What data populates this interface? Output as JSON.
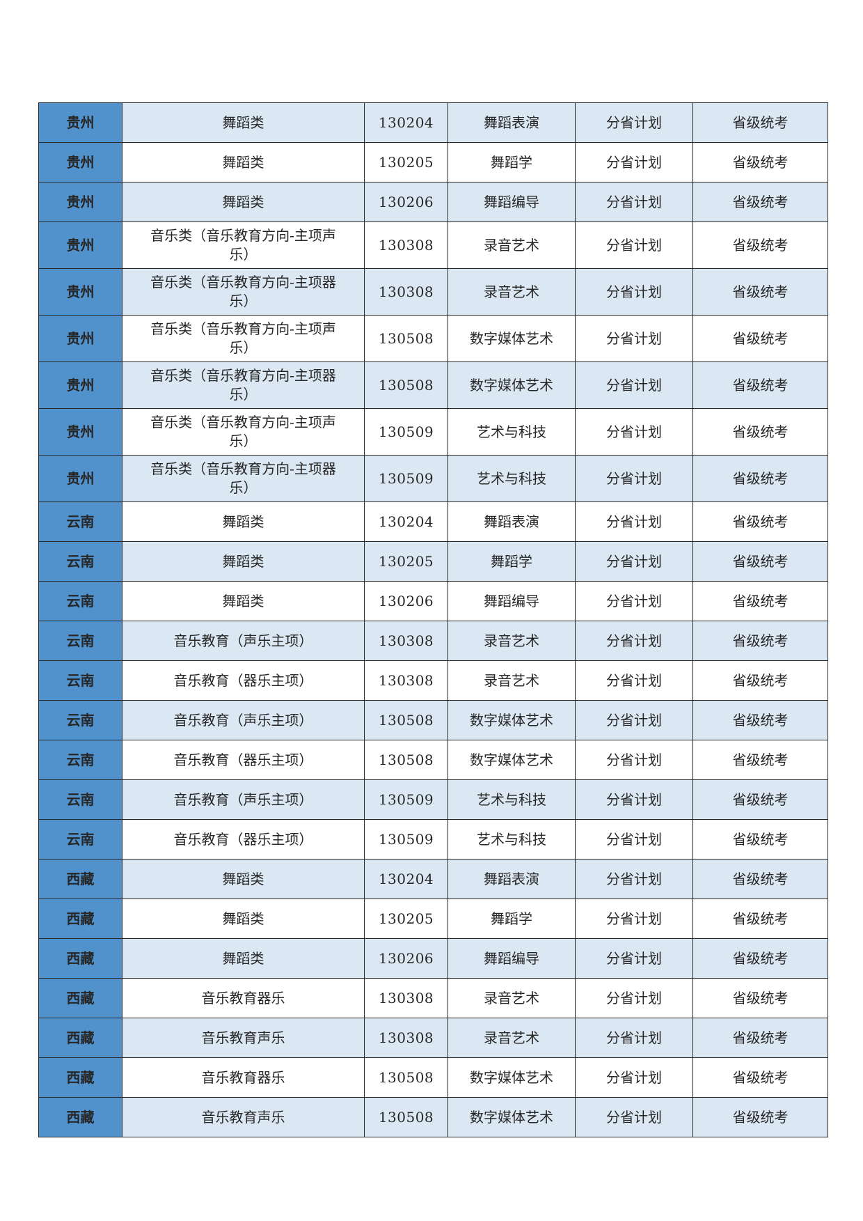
{
  "table": {
    "description": "enrollment plan table",
    "colors": {
      "province_cell_bg": "#5192cd",
      "row_light_bg": "#dbe8f4",
      "row_white_bg": "#ffffff",
      "border": "#262626",
      "text": "#262626"
    },
    "column_keys": [
      "province",
      "category",
      "code",
      "major",
      "plan",
      "exam"
    ],
    "rows": [
      {
        "province": "贵州",
        "category": "舞蹈类",
        "code": "130204",
        "major": "舞蹈表演",
        "plan": "分省计划",
        "exam": "省级统考",
        "shade": "light"
      },
      {
        "province": "贵州",
        "category": "舞蹈类",
        "code": "130205",
        "major": "舞蹈学",
        "plan": "分省计划",
        "exam": "省级统考",
        "shade": "white"
      },
      {
        "province": "贵州",
        "category": "舞蹈类",
        "code": "130206",
        "major": "舞蹈编导",
        "plan": "分省计划",
        "exam": "省级统考",
        "shade": "light"
      },
      {
        "province": "贵州",
        "category": "音乐类（音乐教育方向-主项声乐）",
        "code": "130308",
        "major": "录音艺术",
        "plan": "分省计划",
        "exam": "省级统考",
        "shade": "white"
      },
      {
        "province": "贵州",
        "category": "音乐类（音乐教育方向-主项器乐）",
        "code": "130308",
        "major": "录音艺术",
        "plan": "分省计划",
        "exam": "省级统考",
        "shade": "light"
      },
      {
        "province": "贵州",
        "category": "音乐类（音乐教育方向-主项声乐）",
        "code": "130508",
        "major": "数字媒体艺术",
        "plan": "分省计划",
        "exam": "省级统考",
        "shade": "white"
      },
      {
        "province": "贵州",
        "category": "音乐类（音乐教育方向-主项器乐）",
        "code": "130508",
        "major": "数字媒体艺术",
        "plan": "分省计划",
        "exam": "省级统考",
        "shade": "light"
      },
      {
        "province": "贵州",
        "category": "音乐类（音乐教育方向-主项声乐）",
        "code": "130509",
        "major": "艺术与科技",
        "plan": "分省计划",
        "exam": "省级统考",
        "shade": "white"
      },
      {
        "province": "贵州",
        "category": "音乐类（音乐教育方向-主项器乐）",
        "code": "130509",
        "major": "艺术与科技",
        "plan": "分省计划",
        "exam": "省级统考",
        "shade": "light"
      },
      {
        "province": "云南",
        "category": "舞蹈类",
        "code": "130204",
        "major": "舞蹈表演",
        "plan": "分省计划",
        "exam": "省级统考",
        "shade": "white"
      },
      {
        "province": "云南",
        "category": "舞蹈类",
        "code": "130205",
        "major": "舞蹈学",
        "plan": "分省计划",
        "exam": "省级统考",
        "shade": "light"
      },
      {
        "province": "云南",
        "category": "舞蹈类",
        "code": "130206",
        "major": "舞蹈编导",
        "plan": "分省计划",
        "exam": "省级统考",
        "shade": "white"
      },
      {
        "province": "云南",
        "category": "音乐教育（声乐主项）",
        "code": "130308",
        "major": "录音艺术",
        "plan": "分省计划",
        "exam": "省级统考",
        "shade": "light"
      },
      {
        "province": "云南",
        "category": "音乐教育（器乐主项）",
        "code": "130308",
        "major": "录音艺术",
        "plan": "分省计划",
        "exam": "省级统考",
        "shade": "white"
      },
      {
        "province": "云南",
        "category": "音乐教育（声乐主项）",
        "code": "130508",
        "major": "数字媒体艺术",
        "plan": "分省计划",
        "exam": "省级统考",
        "shade": "light"
      },
      {
        "province": "云南",
        "category": "音乐教育（器乐主项）",
        "code": "130508",
        "major": "数字媒体艺术",
        "plan": "分省计划",
        "exam": "省级统考",
        "shade": "white"
      },
      {
        "province": "云南",
        "category": "音乐教育（声乐主项）",
        "code": "130509",
        "major": "艺术与科技",
        "plan": "分省计划",
        "exam": "省级统考",
        "shade": "light"
      },
      {
        "province": "云南",
        "category": "音乐教育（器乐主项）",
        "code": "130509",
        "major": "艺术与科技",
        "plan": "分省计划",
        "exam": "省级统考",
        "shade": "white"
      },
      {
        "province": "西藏",
        "category": "舞蹈类",
        "code": "130204",
        "major": "舞蹈表演",
        "plan": "分省计划",
        "exam": "省级统考",
        "shade": "light"
      },
      {
        "province": "西藏",
        "category": "舞蹈类",
        "code": "130205",
        "major": "舞蹈学",
        "plan": "分省计划",
        "exam": "省级统考",
        "shade": "white"
      },
      {
        "province": "西藏",
        "category": "舞蹈类",
        "code": "130206",
        "major": "舞蹈编导",
        "plan": "分省计划",
        "exam": "省级统考",
        "shade": "light"
      },
      {
        "province": "西藏",
        "category": "音乐教育器乐",
        "code": "130308",
        "major": "录音艺术",
        "plan": "分省计划",
        "exam": "省级统考",
        "shade": "white"
      },
      {
        "province": "西藏",
        "category": "音乐教育声乐",
        "code": "130308",
        "major": "录音艺术",
        "plan": "分省计划",
        "exam": "省级统考",
        "shade": "light"
      },
      {
        "province": "西藏",
        "category": "音乐教育器乐",
        "code": "130508",
        "major": "数字媒体艺术",
        "plan": "分省计划",
        "exam": "省级统考",
        "shade": "white"
      },
      {
        "province": "西藏",
        "category": "音乐教育声乐",
        "code": "130508",
        "major": "数字媒体艺术",
        "plan": "分省计划",
        "exam": "省级统考",
        "shade": "light"
      }
    ]
  }
}
